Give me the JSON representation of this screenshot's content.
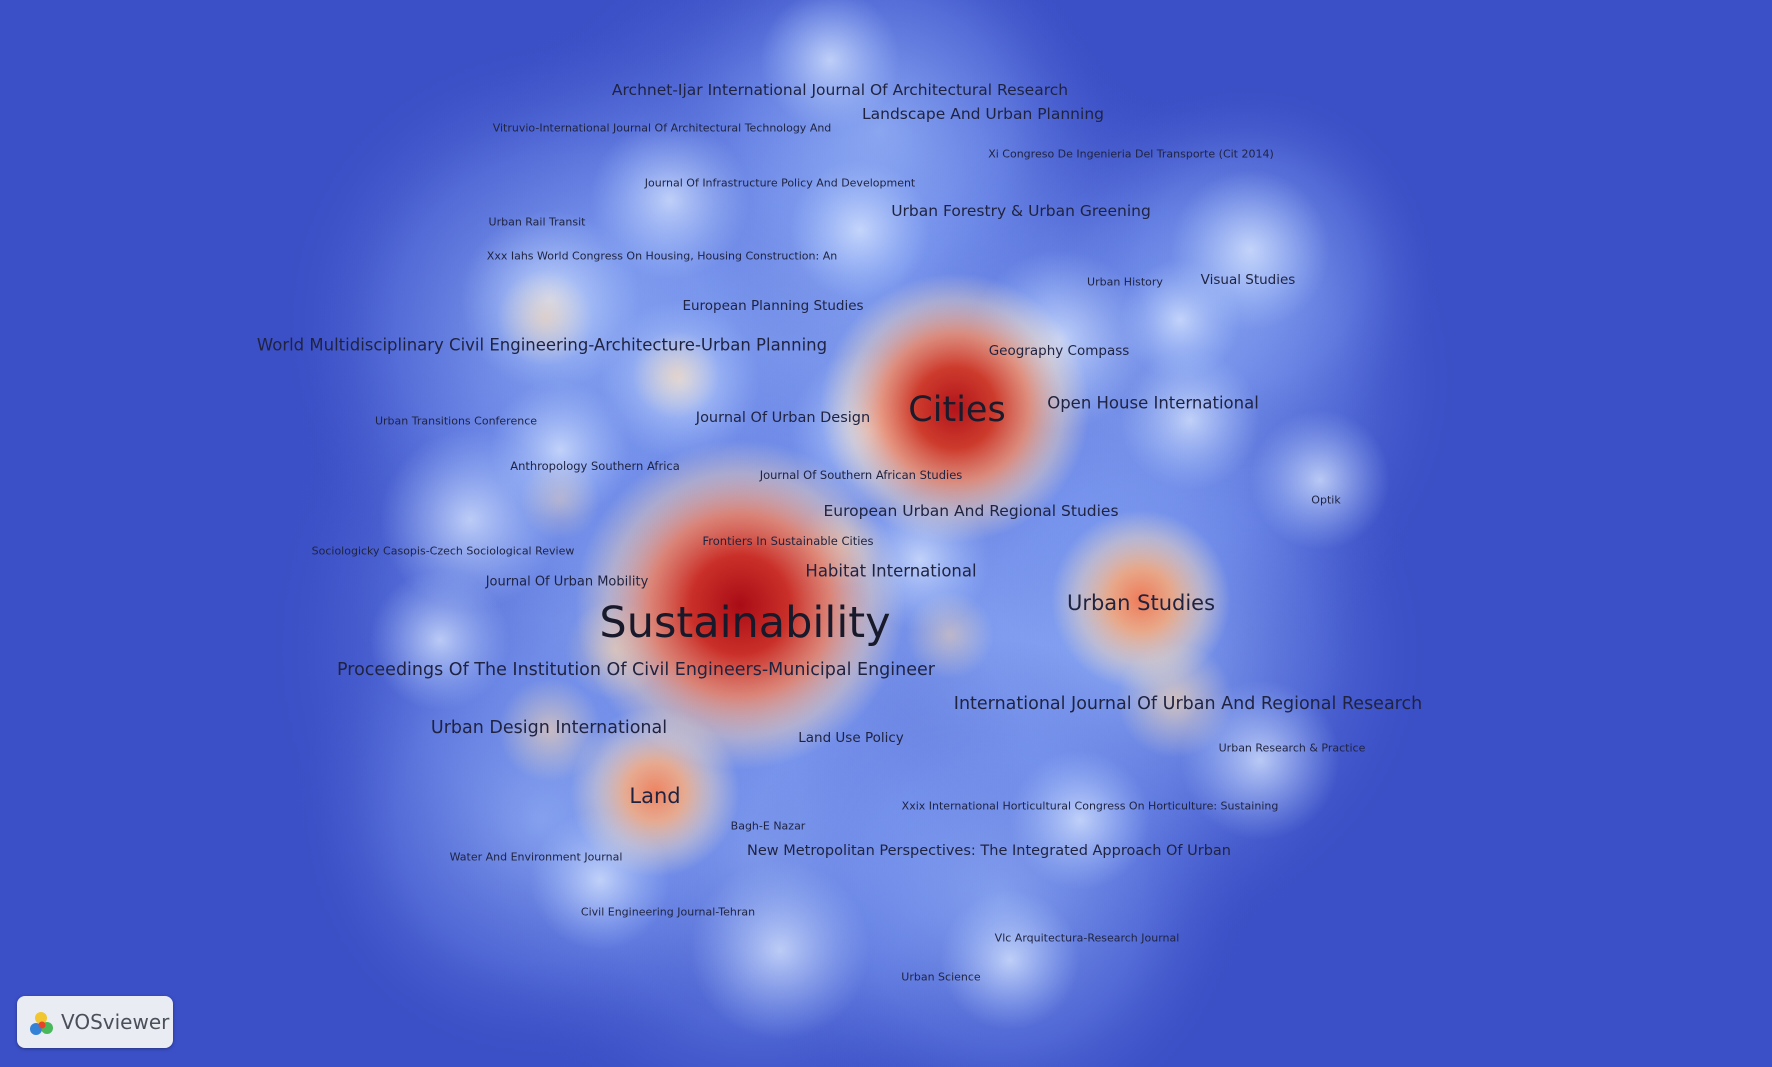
{
  "app": {
    "name": "VOSviewer",
    "view": "density visualization"
  },
  "colors": {
    "background": "#3b4fc6",
    "low": "#c9dcff",
    "mid": "#fff0c6",
    "high": "#b4141b"
  },
  "nodes": [
    {
      "id": "sustainability",
      "label": "Sustainability",
      "weight": 1.0
    },
    {
      "id": "cities",
      "label": "Cities",
      "weight": 0.82
    },
    {
      "id": "urban-studies",
      "label": "Urban Studies",
      "weight": 0.5
    },
    {
      "id": "land",
      "label": "Land",
      "weight": 0.45
    },
    {
      "id": "proceedings-ice-municipal",
      "label": "Proceedings Of The Institution Of Civil Engineers-Municipal Engineer",
      "weight": 0.3
    },
    {
      "id": "ijurr",
      "label": "International Journal Of Urban And Regional Research",
      "weight": 0.3
    },
    {
      "id": "urban-design-international",
      "label": "Urban Design International",
      "weight": 0.3
    },
    {
      "id": "world-multidisciplinary",
      "label": "World Multidisciplinary Civil Engineering-Architecture-Urban Planning",
      "weight": 0.3
    },
    {
      "id": "habitat-international",
      "label": "Habitat International",
      "weight": 0.28
    },
    {
      "id": "open-house-international",
      "label": "Open House International",
      "weight": 0.28
    },
    {
      "id": "european-urban-regional",
      "label": "European Urban And Regional Studies",
      "weight": 0.26
    },
    {
      "id": "urban-forestry",
      "label": "Urban Forestry & Urban Greening",
      "weight": 0.26
    },
    {
      "id": "archnet",
      "label": "Archnet-Ijar International Journal Of Architectural Research",
      "weight": 0.25
    },
    {
      "id": "landscape-urban-planning",
      "label": "Landscape And Urban Planning",
      "weight": 0.25
    },
    {
      "id": "new-metropolitan",
      "label": "New Metropolitan Perspectives: The Integrated Approach Of Urban",
      "weight": 0.22
    },
    {
      "id": "journal-urban-design",
      "label": "Journal Of Urban Design",
      "weight": 0.22
    },
    {
      "id": "european-planning",
      "label": "European Planning Studies",
      "weight": 0.2
    },
    {
      "id": "geography-compass",
      "label": "Geography Compass",
      "weight": 0.2
    },
    {
      "id": "visual-studies",
      "label": "Visual Studies",
      "weight": 0.2
    },
    {
      "id": "land-use-policy",
      "label": "Land Use Policy",
      "weight": 0.2
    },
    {
      "id": "journal-urban-mobility",
      "label": "Journal Of Urban Mobility",
      "weight": 0.18
    },
    {
      "id": "frontiers-sustainable-cities",
      "label": "Frontiers In Sustainable Cities",
      "weight": 0.16
    },
    {
      "id": "journal-southern-african",
      "label": "Journal Of Southern African Studies",
      "weight": 0.16
    },
    {
      "id": "anthropology-southern-africa",
      "label": "Anthropology Southern Africa",
      "weight": 0.16
    },
    {
      "id": "urban-transitions",
      "label": "Urban Transitions Conference",
      "weight": 0.15
    },
    {
      "id": "sociologicky",
      "label": "Sociologicky Casopis-Czech Sociological Review",
      "weight": 0.15
    },
    {
      "id": "vitruvio",
      "label": "Vitruvio-International Journal Of Architectural Technology And",
      "weight": 0.15
    },
    {
      "id": "xi-congreso",
      "label": "Xi Congreso De Ingenieria Del Transporte (Cit 2014)",
      "weight": 0.15
    },
    {
      "id": "journal-infrastructure",
      "label": "Journal Of Infrastructure Policy And Development",
      "weight": 0.15
    },
    {
      "id": "urban-rail-transit",
      "label": "Urban Rail Transit",
      "weight": 0.15
    },
    {
      "id": "xxx-iahs",
      "label": "Xxx Iahs World Congress On Housing, Housing Construction: An",
      "weight": 0.15
    },
    {
      "id": "urban-history",
      "label": "Urban History",
      "weight": 0.15
    },
    {
      "id": "optik",
      "label": "Optik",
      "weight": 0.15
    },
    {
      "id": "urban-research-practice",
      "label": "Urban Research & Practice",
      "weight": 0.15
    },
    {
      "id": "xxix-horticultural",
      "label": "Xxix International Horticultural Congress On Horticulture: Sustaining",
      "weight": 0.15
    },
    {
      "id": "bagh-e-nazar",
      "label": "Bagh-E Nazar",
      "weight": 0.15
    },
    {
      "id": "water-environment",
      "label": "Water And Environment Journal",
      "weight": 0.15
    },
    {
      "id": "civil-engineering-tehran",
      "label": "Civil Engineering Journal-Tehran",
      "weight": 0.15
    },
    {
      "id": "vlc-arquitectura",
      "label": "Vlc Arquitectura-Research Journal",
      "weight": 0.15
    },
    {
      "id": "urban-science",
      "label": "Urban Science",
      "weight": 0.15
    }
  ]
}
